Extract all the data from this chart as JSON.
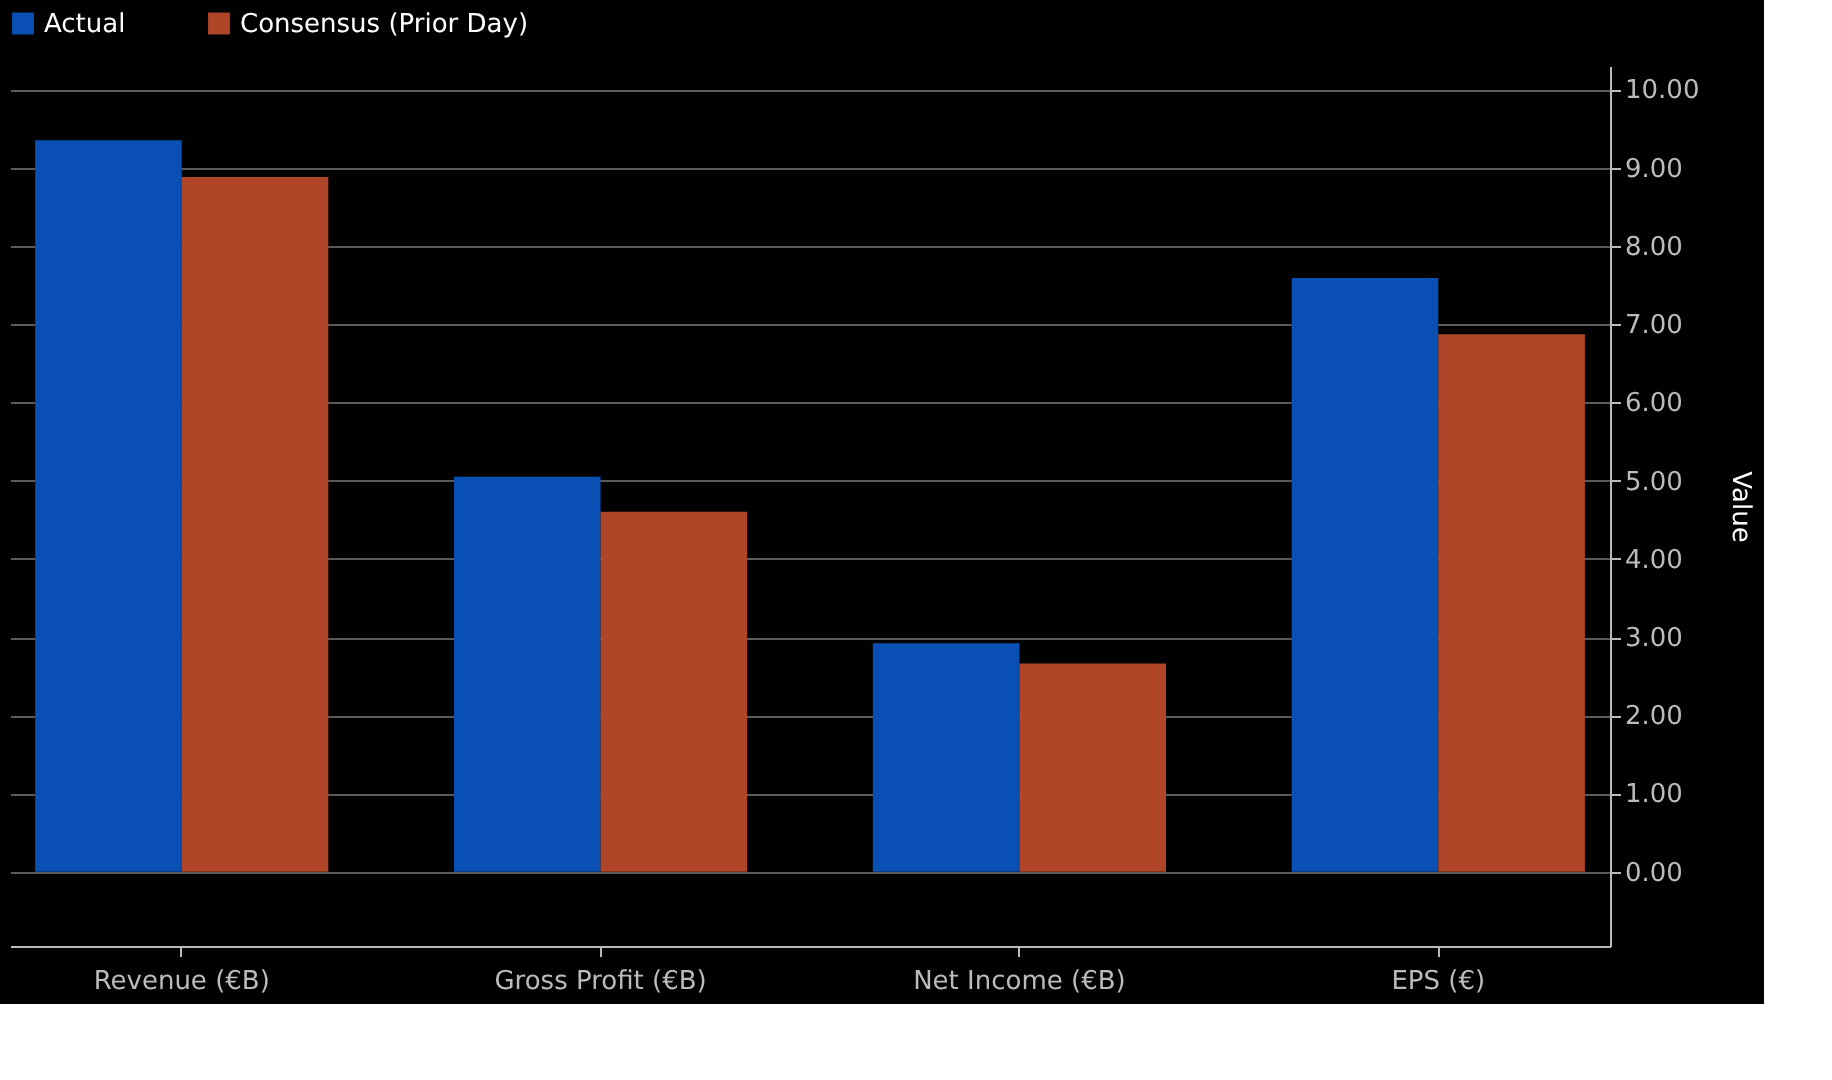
{
  "chart_data": {
    "type": "bar",
    "ylabel": "Value",
    "categories": [
      "Revenue (€B)",
      "Gross Profit (€B)",
      "Net Income (€B)",
      "EPS (€)"
    ],
    "series": [
      {
        "name": "Actual",
        "color": "#0a50b4",
        "values": [
          9.35,
          5.05,
          2.92,
          7.59
        ]
      },
      {
        "name": "Consensus (Prior Day)",
        "color": "#b04527",
        "values": [
          8.88,
          4.6,
          2.66,
          6.87
        ]
      }
    ],
    "ylim": [
      -0.95,
      10.3
    ],
    "yticks": [
      {
        "value": 0,
        "label": "0.00"
      },
      {
        "value": 1,
        "label": "1.00"
      },
      {
        "value": 2,
        "label": "2.00"
      },
      {
        "value": 3,
        "label": "3.00"
      },
      {
        "value": 4,
        "label": "4.00"
      },
      {
        "value": 5,
        "label": "5.00"
      },
      {
        "value": 6,
        "label": "6.00"
      },
      {
        "value": 7,
        "label": "7.00"
      },
      {
        "value": 8,
        "label": "8.00"
      },
      {
        "value": 9,
        "label": "9.00"
      },
      {
        "value": 10,
        "label": "10.00"
      }
    ],
    "grid": "y",
    "legend": "top left"
  }
}
